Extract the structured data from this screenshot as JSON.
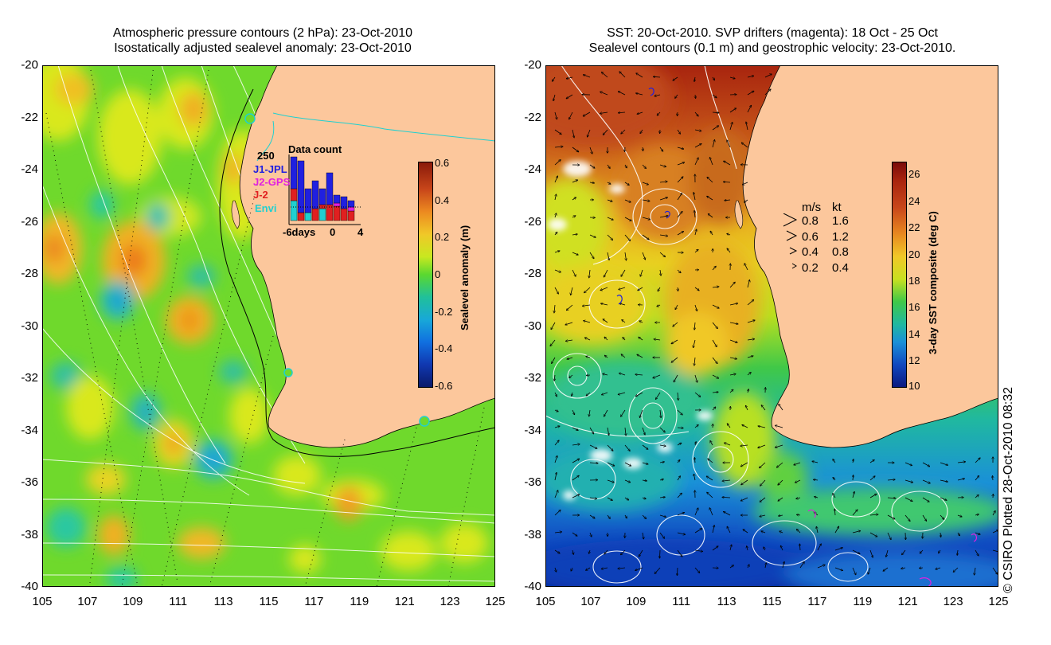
{
  "left_panel": {
    "title_line1": "Atmospheric pressure contours (2 hPa): 23-Oct-2010",
    "title_line2": "Isostatically adjusted sealevel anomaly: 23-Oct-2010",
    "colorbar_label": "Sealevel anomaly (m)",
    "colorbar_ticks": [
      "0.6",
      "0.4",
      "0.2",
      "0",
      "-0.2",
      "-0.4",
      "-0.6"
    ],
    "inset": {
      "title": "Data count",
      "ymax_label": "250",
      "legend": [
        "J1-JPL",
        "J2-GPS",
        "J-2",
        "Envi"
      ],
      "legend_colors": [
        "#2020e0",
        "#e020e0",
        "#e02020",
        "#20d0d0"
      ],
      "xlabels": [
        "-6days",
        "0",
        "4"
      ]
    }
  },
  "right_panel": {
    "title_line1": "SST: 20-Oct-2010. SVP drifters (magenta): 18 Oct - 25 Oct",
    "title_line2": "Sealevel contours (0.1 m) and geostrophic velocity: 23-Oct-2010.",
    "colorbar_label": "3-day SST composite (deg C)",
    "colorbar_ticks": [
      "26",
      "24",
      "22",
      "20",
      "18",
      "16",
      "14",
      "12",
      "10"
    ],
    "velocity_legend": {
      "header_ms": "m/s",
      "header_kt": "kt",
      "rows": [
        {
          "ms": "0.8",
          "kt": "1.6"
        },
        {
          "ms": "0.6",
          "kt": "1.2"
        },
        {
          "ms": "0.4",
          "kt": "0.8"
        },
        {
          "ms": "0.2",
          "kt": "0.4"
        }
      ]
    }
  },
  "axes": {
    "y_ticks": [
      "-20",
      "-22",
      "-24",
      "-26",
      "-28",
      "-30",
      "-32",
      "-34",
      "-36",
      "-38",
      "-40"
    ],
    "x_ticks": [
      "105",
      "107",
      "109",
      "111",
      "113",
      "115",
      "117",
      "119",
      "121",
      "123",
      "125"
    ]
  },
  "credit": "© CSIRO Plotted 28-Oct-2010 08:32",
  "colors": {
    "land": "#fcc79c",
    "sla_background": "#70dc2c",
    "sst_background": "#2a8ad8"
  }
}
